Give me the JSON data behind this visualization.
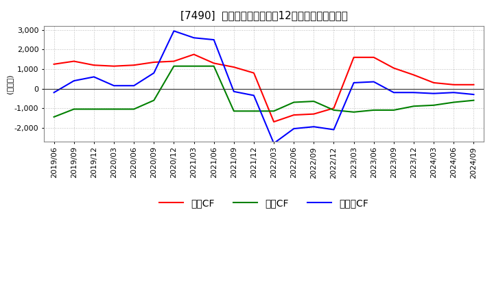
{
  "title": "[7490]  キャッシュフローの12か月移動合計の推移",
  "ylabel": "(百万円)",
  "ylim": [
    -2700,
    3200
  ],
  "yticks": [
    -2000,
    -1000,
    0,
    1000,
    2000,
    3000
  ],
  "background_color": "#ffffff",
  "grid_color": "#bbbbbb",
  "dates": [
    "2019/06",
    "2019/09",
    "2019/12",
    "2020/03",
    "2020/06",
    "2020/09",
    "2020/12",
    "2021/03",
    "2021/06",
    "2021/09",
    "2021/12",
    "2022/03",
    "2022/06",
    "2022/09",
    "2022/12",
    "2023/03",
    "2023/06",
    "2023/09",
    "2023/12",
    "2024/03",
    "2024/06",
    "2024/09"
  ],
  "operating_cf": [
    1250,
    1400,
    1200,
    1150,
    1200,
    1350,
    1400,
    1750,
    1300,
    1100,
    800,
    -1700,
    -1350,
    -1300,
    -1000,
    1600,
    1600,
    1050,
    700,
    300,
    200,
    200
  ],
  "investing_cf": [
    -1450,
    -1050,
    -1050,
    -1050,
    -1050,
    -600,
    1150,
    1150,
    1150,
    -1150,
    -1150,
    -1150,
    -700,
    -650,
    -1100,
    -1200,
    -1100,
    -1100,
    -900,
    -850,
    -700,
    -600
  ],
  "free_cf": [
    -200,
    400,
    600,
    150,
    150,
    800,
    2950,
    2600,
    2500,
    -150,
    -350,
    -2800,
    -2050,
    -1950,
    -2100,
    300,
    350,
    -200,
    -200,
    -250,
    -200,
    -300
  ],
  "line_colors": {
    "operating": "#ff0000",
    "investing": "#008000",
    "free": "#0000ff"
  },
  "legend_labels": [
    "営業CF",
    "投資CF",
    "フリーCF"
  ],
  "title_fontsize": 11,
  "tick_fontsize": 8,
  "label_fontsize": 8,
  "legend_fontsize": 10
}
